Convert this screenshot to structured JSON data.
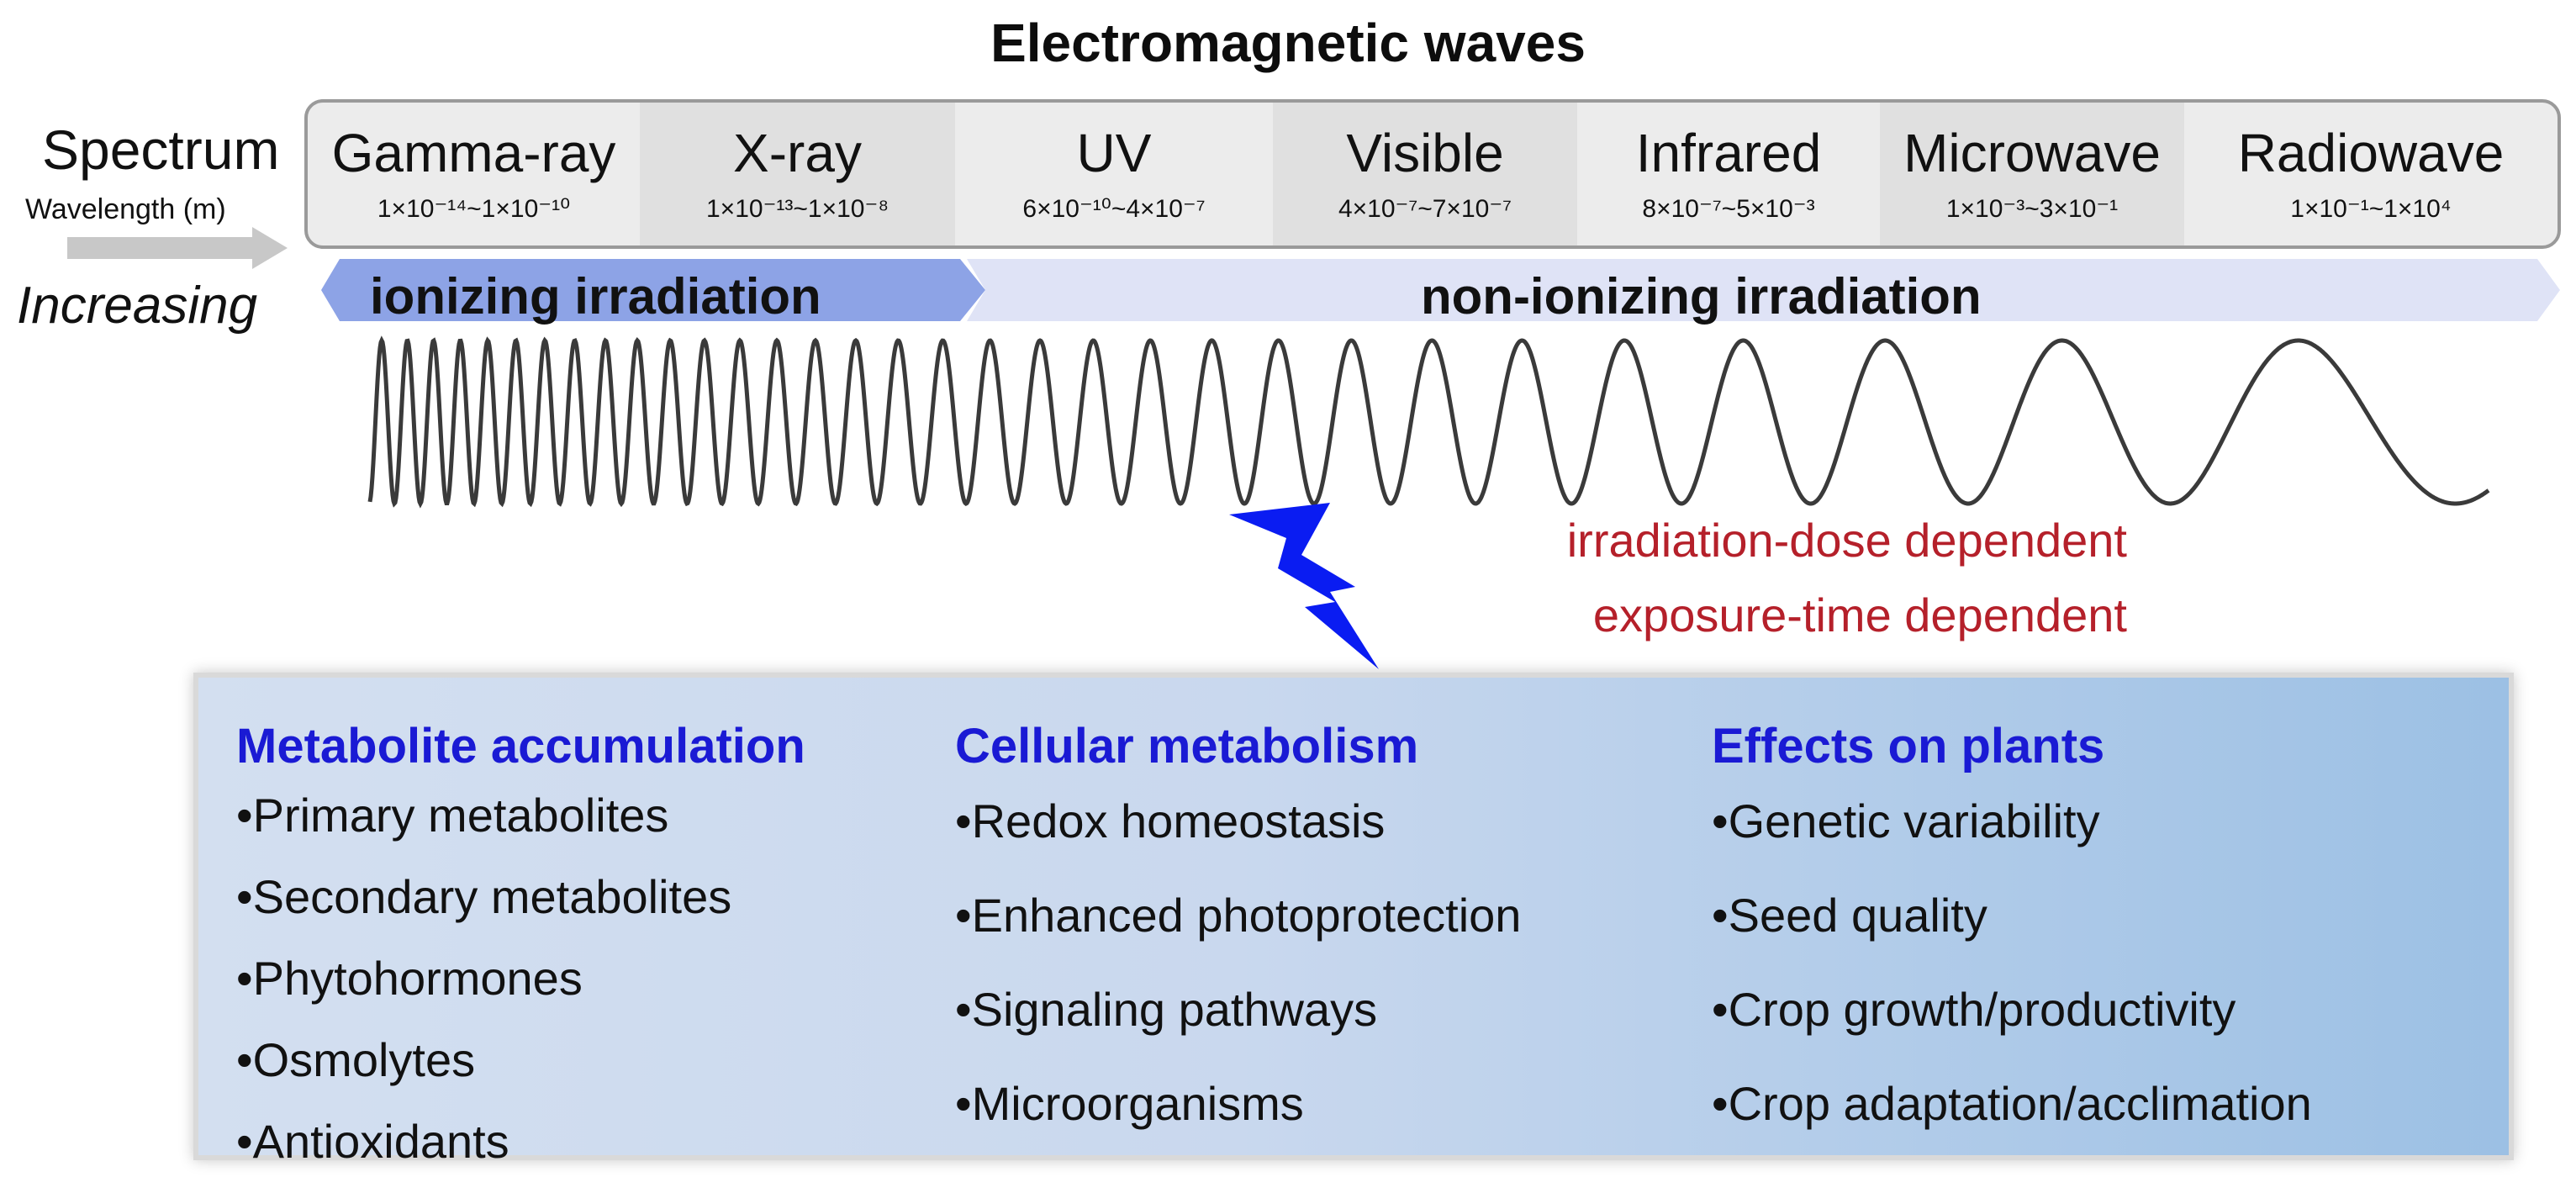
{
  "title": "Electromagnetic waves",
  "spectrum_label": "Spectrum",
  "wavelength_label": "Wavelength (m)",
  "direction_label": "Increasing",
  "bands": [
    {
      "name": "Gamma-ray",
      "range": "1×10⁻¹⁴~1×10⁻¹⁰"
    },
    {
      "name": "X-ray",
      "range": "1×10⁻¹³~1×10⁻⁸"
    },
    {
      "name": "UV",
      "range": "6×10⁻¹⁰~4×10⁻⁷"
    },
    {
      "name": "Visible",
      "range": "4×10⁻⁷~7×10⁻⁷"
    },
    {
      "name": "Infrared",
      "range": "8×10⁻⁷~5×10⁻³"
    },
    {
      "name": "Microwave",
      "range": "1×10⁻³~3×10⁻¹"
    },
    {
      "name": "Radiowave",
      "range": "1×10⁻¹~1×10⁴"
    }
  ],
  "ionizing_label": "ionizing irradiation",
  "nonionizing_label": "non-ionizing irradiation",
  "dependency_labels": {
    "dose": "irradiation-dose dependent",
    "time": "exposure-time dependent"
  },
  "columns": [
    {
      "title": "Metabolite accumulation",
      "items": [
        "•Primary metabolites",
        "•Secondary metabolites",
        "•Phytohormones",
        "•Osmolytes",
        "•Antioxidants"
      ]
    },
    {
      "title": "Cellular metabolism",
      "items": [
        "•Redox homeostasis",
        "•Enhanced photoprotection",
        "•Signaling pathways",
        "•Microorganisms"
      ]
    },
    {
      "title": "Effects on plants",
      "items": [
        "•Genetic variability",
        "•Seed quality",
        "•Crop growth/productivity",
        "•Crop adaptation/acclimation"
      ]
    }
  ],
  "colors": {
    "ionizing_bar": "#8da3e6",
    "nonionizing_bar": "#dfe3f6",
    "bolt": "#0a1cf2",
    "dependency_text": "#b5202a",
    "column_title": "#1a1ad4"
  },
  "icons": [
    "right-arrow-icon",
    "lightning-bolt-icon"
  ]
}
